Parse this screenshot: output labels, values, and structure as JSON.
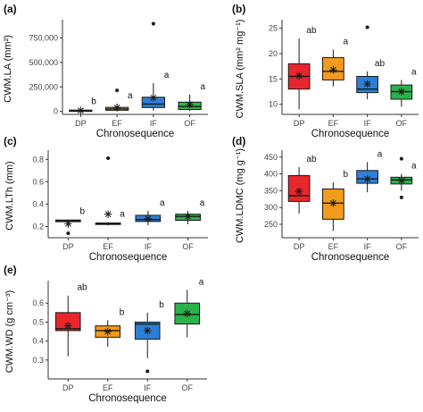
{
  "figure": {
    "colors": {
      "DP": "#e8262b",
      "EF": "#f39b1c",
      "IF": "#2c7fd6",
      "OF": "#2ab34a",
      "axis": "#333333",
      "outline": "#1a1a1a"
    }
  },
  "chart_data": [
    {
      "panel": "(a)",
      "type": "box",
      "ylabel": "CWM.LA (mm²)",
      "xlabel": "Chronosequence",
      "categories": [
        "DP",
        "EF",
        "IF",
        "OF"
      ],
      "ylim": [
        -30000,
        900000
      ],
      "yticks": [
        0,
        250000,
        500000,
        750000
      ],
      "ytick_labels": [
        "0",
        "250,000",
        "500,000",
        "750,000"
      ],
      "boxes": [
        {
          "q1": 3000,
          "median": 8000,
          "q3": 14000,
          "lower": 0,
          "upper": 22000,
          "mean": 10000,
          "outliers": [],
          "letter": "b"
        },
        {
          "q1": 12000,
          "median": 25000,
          "q3": 42000,
          "lower": 4000,
          "upper": 80000,
          "mean": 38000,
          "outliers": [
            215000
          ],
          "letter": "a"
        },
        {
          "q1": 40000,
          "median": 75000,
          "q3": 145000,
          "lower": 8000,
          "upper": 290000,
          "mean": 140000,
          "outliers": [
            895000
          ],
          "letter": "a"
        },
        {
          "q1": 20000,
          "median": 50000,
          "q3": 95000,
          "lower": 5000,
          "upper": 170000,
          "mean": 70000,
          "outliers": [],
          "letter": "a"
        }
      ]
    },
    {
      "panel": "(b)",
      "type": "box",
      "ylabel": "CWM.SLA (mm² mg⁻¹)",
      "xlabel": "Chronosequence",
      "categories": [
        "DP",
        "EF",
        "IF",
        "OF"
      ],
      "ylim": [
        8,
        26
      ],
      "yticks": [
        10,
        15,
        20,
        25
      ],
      "ytick_labels": [
        "10",
        "15",
        "20",
        "25"
      ],
      "boxes": [
        {
          "q1": 13.0,
          "median": 15.5,
          "q3": 18.0,
          "lower": 9.0,
          "upper": 23.0,
          "mean": 15.6,
          "outliers": [],
          "letter": "ab"
        },
        {
          "q1": 14.8,
          "median": 16.5,
          "q3": 19.2,
          "lower": 13.5,
          "upper": 20.8,
          "mean": 16.8,
          "outliers": [],
          "letter": "a"
        },
        {
          "q1": 12.3,
          "median": 13.0,
          "q3": 15.5,
          "lower": 11.0,
          "upper": 16.5,
          "mean": 14.0,
          "outliers": [
            25.2
          ],
          "letter": "ab"
        },
        {
          "q1": 11.0,
          "median": 12.5,
          "q3": 13.8,
          "lower": 9.5,
          "upper": 14.8,
          "mean": 12.5,
          "outliers": [],
          "letter": "a"
        }
      ]
    },
    {
      "panel": "(c)",
      "type": "box",
      "ylabel": "CWM.LTh (mm)",
      "xlabel": "Chronosequence",
      "categories": [
        "DP",
        "EF",
        "IF",
        "OF"
      ],
      "ylim": [
        0.1,
        0.85
      ],
      "yticks": [
        0.2,
        0.4,
        0.6,
        0.8
      ],
      "ytick_labels": [
        "0.2",
        "0.4",
        "0.6",
        "0.8"
      ],
      "boxes": [
        {
          "q1": 0.243,
          "median": 0.25,
          "q3": 0.258,
          "lower": 0.19,
          "upper": 0.262,
          "mean": 0.225,
          "outliers": [
            0.14
          ],
          "letter": "b"
        },
        {
          "q1": 0.218,
          "median": 0.222,
          "q3": 0.232,
          "lower": 0.21,
          "upper": 0.24,
          "mean": 0.31,
          "outliers": [
            0.81
          ],
          "letter": "a"
        },
        {
          "q1": 0.245,
          "median": 0.262,
          "q3": 0.3,
          "lower": 0.21,
          "upper": 0.34,
          "mean": 0.27,
          "outliers": [],
          "letter": "a"
        },
        {
          "q1": 0.255,
          "median": 0.29,
          "q3": 0.31,
          "lower": 0.22,
          "upper": 0.34,
          "mean": 0.29,
          "outliers": [],
          "letter": "a"
        }
      ]
    },
    {
      "panel": "(d)",
      "type": "box",
      "ylabel": "CWM.LDMC (mg g⁻¹)",
      "xlabel": "Chronosequence",
      "categories": [
        "DP",
        "EF",
        "IF",
        "OF"
      ],
      "ylim": [
        210,
        460
      ],
      "yticks": [
        250,
        300,
        350,
        400,
        450
      ],
      "ytick_labels": [
        "250",
        "300",
        "350",
        "400",
        "450"
      ],
      "boxes": [
        {
          "q1": 318,
          "median": 335,
          "q3": 395,
          "lower": 282,
          "upper": 420,
          "mean": 348,
          "outliers": [],
          "letter": "ab"
        },
        {
          "q1": 265,
          "median": 313,
          "q3": 355,
          "lower": 230,
          "upper": 375,
          "mean": 313,
          "outliers": [],
          "letter": "b"
        },
        {
          "q1": 372,
          "median": 385,
          "q3": 410,
          "lower": 345,
          "upper": 435,
          "mean": 385,
          "outliers": [],
          "letter": "a"
        },
        {
          "q1": 370,
          "median": 382,
          "q3": 390,
          "lower": 350,
          "upper": 400,
          "mean": 380,
          "outliers": [
            445,
            330
          ],
          "letter": "a"
        }
      ]
    },
    {
      "panel": "(e)",
      "type": "box",
      "ylabel": "CWM.WD (g cm⁻³)",
      "xlabel": "Chronosequence",
      "categories": [
        "DP",
        "EF",
        "IF",
        "OF"
      ],
      "ylim": [
        0.2,
        0.7
      ],
      "yticks": [
        0.3,
        0.4,
        0.5,
        0.6
      ],
      "ytick_labels": [
        "0.3",
        "0.4",
        "0.5",
        "0.6"
      ],
      "boxes": [
        {
          "q1": 0.455,
          "median": 0.465,
          "q3": 0.55,
          "lower": 0.32,
          "upper": 0.64,
          "mean": 0.48,
          "outliers": [],
          "letter": "ab"
        },
        {
          "q1": 0.42,
          "median": 0.455,
          "q3": 0.48,
          "lower": 0.37,
          "upper": 0.51,
          "mean": 0.45,
          "outliers": [],
          "letter": "b"
        },
        {
          "q1": 0.41,
          "median": 0.49,
          "q3": 0.5,
          "lower": 0.31,
          "upper": 0.55,
          "mean": 0.455,
          "outliers": [
            0.24
          ],
          "letter": "b"
        },
        {
          "q1": 0.49,
          "median": 0.54,
          "q3": 0.6,
          "lower": 0.42,
          "upper": 0.67,
          "mean": 0.545,
          "outliers": [],
          "letter": "a"
        }
      ]
    }
  ]
}
